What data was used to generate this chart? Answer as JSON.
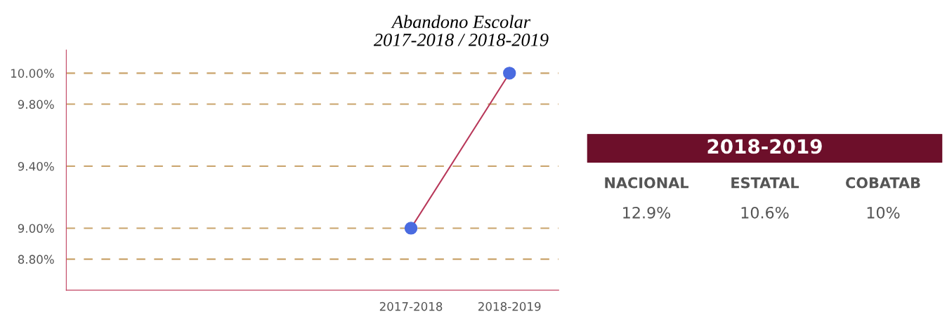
{
  "chart_data": [
    {
      "type": "line",
      "title": "Abandono Escolar\n2017-2018 / 2018-2019",
      "categories": [
        null,
        null,
        null,
        "2017-2018",
        "2018-2019"
      ],
      "series": [
        {
          "color": "#b8385a",
          "colors": [
            null,
            null,
            null,
            "#4a6be0",
            "#4a6be0"
          ],
          "values": [
            null,
            null,
            null,
            9.0,
            10.0
          ]
        }
      ],
      "marker": "circle",
      "line_style": "solid",
      "ylim": [
        8.6,
        10.15
      ],
      "yticks": [
        {
          "value": 8.8,
          "label": "8.80%"
        },
        {
          "value": 9.0,
          "label": "9.00%"
        },
        {
          "value": 9.4,
          "label": "9.40%"
        },
        {
          "value": 9.8,
          "label": "9.80%"
        },
        {
          "value": 10.0,
          "label": "10.00%"
        }
      ],
      "grid": "y",
      "legend": false
    },
    {
      "type": "other",
      "title": "2018-2019",
      "categories": [
        "NACIONAL",
        "ESTATAL",
        "COBATAB"
      ],
      "annotations": [
        "12.9%",
        "10.6%",
        "10%"
      ]
    }
  ]
}
